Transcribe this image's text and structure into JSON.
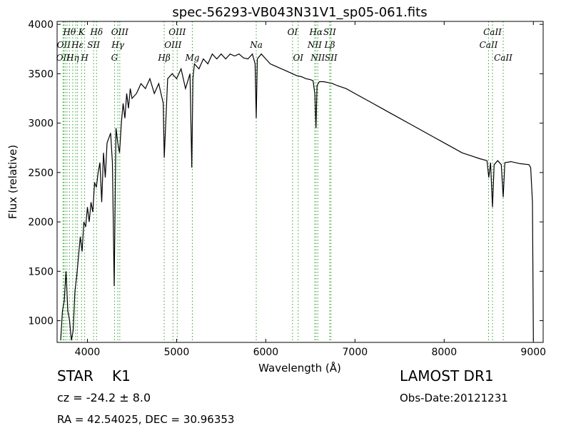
{
  "chart_data": {
    "type": "line",
    "title": "spec-56293-VB043N31V1_sp05-061.fits",
    "xlabel": "Wavelength (Å)",
    "ylabel": "Flux (relative)",
    "xlim": [
      3660,
      9110
    ],
    "ylim": [
      780,
      4030
    ],
    "xticks": [
      4000,
      5000,
      6000,
      7000,
      8000,
      9000
    ],
    "yticks": [
      1000,
      1500,
      2000,
      2500,
      3000,
      3500,
      4000
    ],
    "grid": false,
    "line_color": "#000000",
    "marker_color": "#2ca02c",
    "series": [
      {
        "x": [
          3700,
          3720,
          3740,
          3760,
          3780,
          3800,
          3820,
          3840,
          3860,
          3880,
          3900,
          3920,
          3940,
          3960,
          3980,
          4000,
          4020,
          4040,
          4060,
          4080,
          4100,
          4120,
          4140,
          4160,
          4180,
          4200,
          4220,
          4240,
          4260,
          4280,
          4300,
          4320,
          4340,
          4360,
          4380,
          4400,
          4420,
          4440,
          4460,
          4480,
          4500,
          4550,
          4600,
          4650,
          4700,
          4750,
          4800,
          4850,
          4861,
          4900,
          4950,
          5000,
          5050,
          5100,
          5150,
          5170,
          5183,
          5200,
          5250,
          5300,
          5350,
          5400,
          5450,
          5500,
          5550,
          5600,
          5650,
          5700,
          5750,
          5800,
          5850,
          5880,
          5893,
          5905,
          5950,
          6000,
          6050,
          6100,
          6150,
          6200,
          6250,
          6300,
          6350,
          6400,
          6450,
          6500,
          6530,
          6550,
          6563,
          6575,
          6600,
          6650,
          6700,
          6750,
          6800,
          6900,
          7000,
          7100,
          7200,
          7300,
          7400,
          7500,
          7600,
          7700,
          7800,
          7900,
          8000,
          8100,
          8200,
          8300,
          8400,
          8480,
          8500,
          8520,
          8542,
          8560,
          8600,
          8640,
          8662,
          8680,
          8750,
          8850,
          8950,
          8970,
          8990,
          9000
        ],
        "y": [
          800,
          1100,
          1200,
          1500,
          1100,
          1000,
          800,
          900,
          1300,
          1450,
          1650,
          1850,
          1700,
          2000,
          1950,
          2150,
          2000,
          2200,
          2100,
          2400,
          2350,
          2500,
          2600,
          2200,
          2700,
          2450,
          2800,
          2850,
          2900,
          2600,
          1350,
          2950,
          2800,
          2700,
          3000,
          3200,
          3050,
          3300,
          3150,
          3350,
          3250,
          3300,
          3400,
          3350,
          3450,
          3300,
          3400,
          3200,
          2650,
          3450,
          3500,
          3450,
          3550,
          3350,
          3500,
          2550,
          3450,
          3600,
          3550,
          3650,
          3600,
          3700,
          3650,
          3700,
          3650,
          3700,
          3680,
          3700,
          3660,
          3650,
          3700,
          3600,
          3050,
          3650,
          3700,
          3650,
          3600,
          3580,
          3560,
          3540,
          3520,
          3500,
          3480,
          3470,
          3450,
          3440,
          3430,
          3300,
          2950,
          3380,
          3420,
          3420,
          3410,
          3400,
          3380,
          3350,
          3300,
          3250,
          3200,
          3150,
          3100,
          3050,
          3000,
          2950,
          2900,
          2850,
          2800,
          2750,
          2700,
          2670,
          2640,
          2620,
          2450,
          2600,
          2150,
          2580,
          2620,
          2580,
          2250,
          2600,
          2610,
          2590,
          2580,
          2550,
          2200,
          800
        ]
      }
    ],
    "line_markers": [
      {
        "x": 3727,
        "label": "OII",
        "row": 3
      },
      {
        "x": 3734,
        "label": "OII",
        "row": 2
      },
      {
        "x": 3750,
        "label": "",
        "row": 0
      },
      {
        "x": 3771,
        "label": "",
        "row": 0
      },
      {
        "x": 3798,
        "label": "Hθ",
        "row": 1
      },
      {
        "x": 3835,
        "label": "Hη",
        "row": 3
      },
      {
        "x": 3869,
        "label": "",
        "row": 0
      },
      {
        "x": 3889,
        "label": "Hε",
        "row": 2
      },
      {
        "x": 3934,
        "label": "K",
        "row": 1
      },
      {
        "x": 3969,
        "label": "H",
        "row": 3
      },
      {
        "x": 4069,
        "label": "SII",
        "row": 2
      },
      {
        "x": 4102,
        "label": "Hδ",
        "row": 1
      },
      {
        "x": 4304,
        "label": "G",
        "row": 3
      },
      {
        "x": 4341,
        "label": "Hγ",
        "row": 2
      },
      {
        "x": 4363,
        "label": "OIII",
        "row": 1
      },
      {
        "x": 4861,
        "label": "Hβ",
        "row": 3
      },
      {
        "x": 4959,
        "label": "OIII",
        "row": 2
      },
      {
        "x": 5007,
        "label": "OIII",
        "row": 1
      },
      {
        "x": 5176,
        "label": "Mg",
        "row": 3
      },
      {
        "x": 5893,
        "label": "Na",
        "row": 2
      },
      {
        "x": 6300,
        "label": "OI",
        "row": 1
      },
      {
        "x": 6363,
        "label": "OI",
        "row": 3
      },
      {
        "x": 6548,
        "label": "NII",
        "row": 2
      },
      {
        "x": 6563,
        "label": "Hα",
        "row": 1
      },
      {
        "x": 6583,
        "label": "NII",
        "row": 3
      },
      {
        "x": 6716,
        "label": "SII",
        "row": 1
      },
      {
        "x": 6717,
        "label": "Lβ",
        "row": 2
      },
      {
        "x": 6731,
        "label": "SII",
        "row": 3
      },
      {
        "x": 8498,
        "label": "CaII",
        "row": 2
      },
      {
        "x": 8542,
        "label": "CaII",
        "row": 1
      },
      {
        "x": 8662,
        "label": "CaII",
        "row": 3
      }
    ]
  },
  "info": {
    "object_type": "STAR",
    "subclass": "K1",
    "survey": "LAMOST DR1",
    "redshift": "cz = -24.2 ± 8.0",
    "obs_date": "Obs-Date:20121231",
    "coords": "RA = 42.54025, DEC = 30.96353"
  }
}
